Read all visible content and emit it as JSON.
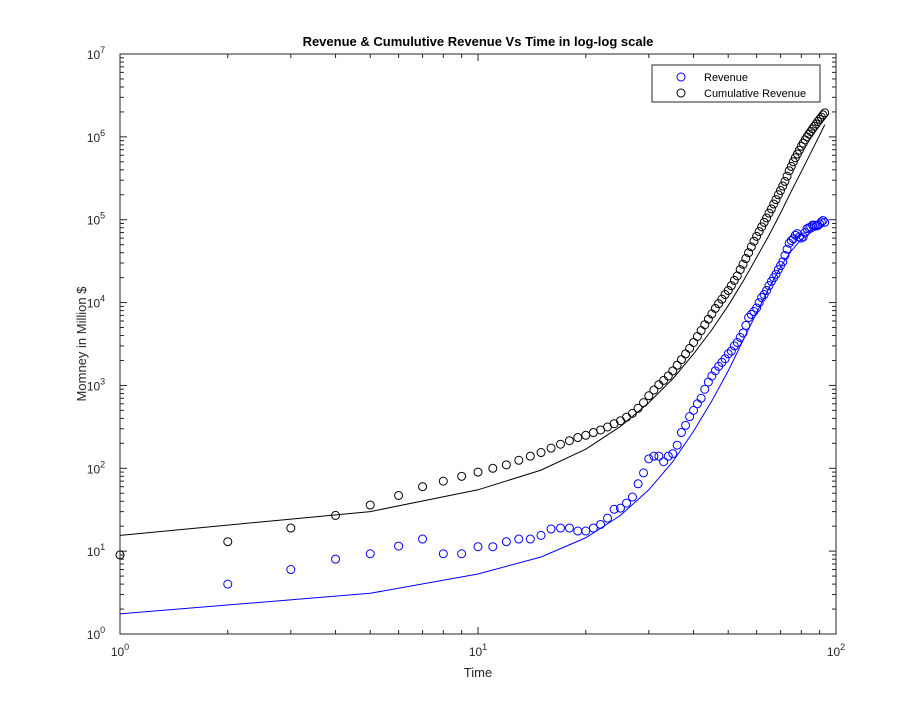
{
  "chart_data": {
    "type": "scatter",
    "title": "Revenue & Cumulutive Revenue Vs Time in log-log scale",
    "xlabel": "Time",
    "ylabel": "Momney in Million $",
    "x_scale": "log",
    "y_scale": "log",
    "xlim": [
      1,
      100
    ],
    "ylim": [
      1,
      10000000
    ],
    "x_ticks": [
      {
        "base": "10",
        "exp": "0",
        "value": 1
      },
      {
        "base": "10",
        "exp": "1",
        "value": 10
      },
      {
        "base": "10",
        "exp": "2",
        "value": 100
      }
    ],
    "y_ticks": [
      {
        "base": "10",
        "exp": "0",
        "value": 1
      },
      {
        "base": "10",
        "exp": "1",
        "value": 10
      },
      {
        "base": "10",
        "exp": "2",
        "value": 100
      },
      {
        "base": "10",
        "exp": "3",
        "value": 1000
      },
      {
        "base": "10",
        "exp": "4",
        "value": 10000
      },
      {
        "base": "10",
        "exp": "5",
        "value": 100000
      },
      {
        "base": "10",
        "exp": "6",
        "value": 1000000
      },
      {
        "base": "10",
        "exp": "7",
        "value": 10000000
      }
    ],
    "grid": false,
    "legend_position": "top-right",
    "series": [
      {
        "name": "Revenue",
        "marker": "circle-open",
        "color": "#0000ff",
        "x": [
          2,
          3,
          4,
          5,
          6,
          7,
          8,
          9,
          10,
          11,
          12,
          13,
          14,
          15,
          16,
          17,
          18,
          19,
          20,
          21,
          22,
          23,
          24,
          25,
          26,
          27,
          28,
          29,
          30,
          31,
          32,
          33,
          34,
          35,
          36,
          37,
          38,
          39,
          40,
          41,
          42,
          43,
          44,
          45,
          46,
          47,
          48,
          49,
          50,
          51,
          52,
          53,
          54,
          55,
          56,
          57,
          58,
          59,
          60,
          61,
          62,
          63,
          64,
          65,
          66,
          67,
          68,
          69,
          70,
          71,
          72,
          73,
          74,
          75,
          76,
          77,
          78,
          79,
          80,
          81,
          82,
          83,
          84,
          85,
          86,
          87,
          88,
          89,
          90,
          91,
          92,
          93
        ],
        "y": [
          4,
          6,
          8,
          9.3,
          11.5,
          14,
          9.3,
          9.3,
          11.3,
          11.3,
          13,
          14,
          14,
          15.5,
          18.5,
          19,
          19,
          17.5,
          17.5,
          19,
          21,
          25,
          32,
          33,
          38,
          45,
          65,
          88,
          130,
          140,
          140,
          120,
          140,
          150,
          190,
          270,
          330,
          420,
          500,
          600,
          700,
          900,
          1100,
          1300,
          1500,
          1700,
          1900,
          2100,
          2400,
          2600,
          3000,
          3300,
          3800,
          4300,
          5300,
          6600,
          7200,
          7800,
          8600,
          10000,
          11500,
          12500,
          14000,
          16000,
          18000,
          20000,
          22000,
          25000,
          28000,
          31000,
          37000,
          44000,
          52000,
          56000,
          59000,
          65000,
          68000,
          62000,
          60000,
          62000,
          70000,
          78000,
          80000,
          82000,
          86000,
          86000,
          84000,
          85000,
          89000,
          94000,
          98000,
          93000
        ]
      },
      {
        "name": "Cumulative Revenue",
        "marker": "circle-open",
        "color": "#000000",
        "x": [
          1,
          2,
          3,
          4,
          5,
          6,
          7,
          8,
          9,
          10,
          11,
          12,
          13,
          14,
          15,
          16,
          17,
          18,
          19,
          20,
          21,
          22,
          23,
          24,
          25,
          26,
          27,
          28,
          29,
          30,
          31,
          32,
          33,
          34,
          35,
          36,
          37,
          38,
          39,
          40,
          41,
          42,
          43,
          44,
          45,
          46,
          47,
          48,
          49,
          50,
          51,
          52,
          53,
          54,
          55,
          56,
          57,
          58,
          59,
          60,
          61,
          62,
          63,
          64,
          65,
          66,
          67,
          68,
          69,
          70,
          71,
          72,
          73,
          74,
          75,
          76,
          77,
          78,
          79,
          80,
          81,
          82,
          83,
          84,
          85,
          86,
          87,
          88,
          89,
          90,
          91,
          92,
          93
        ],
        "y": [
          9,
          13,
          19,
          27,
          36,
          47,
          60,
          70,
          80,
          90,
          100,
          110,
          125,
          140,
          155,
          175,
          195,
          215,
          235,
          250,
          270,
          290,
          315,
          345,
          375,
          415,
          460,
          530,
          620,
          750,
          880,
          1020,
          1150,
          1300,
          1500,
          1750,
          2050,
          2400,
          2800,
          3300,
          3900,
          4600,
          5400,
          6300,
          7300,
          8500,
          9700,
          11000,
          12500,
          14000,
          16000,
          18500,
          21000,
          25000,
          29000,
          34000,
          40000,
          47000,
          55000,
          63000,
          72000,
          82000,
          93000,
          105000,
          120000,
          135000,
          155000,
          175000,
          200000,
          225000,
          255000,
          290000,
          335000,
          390000,
          440000,
          500000,
          560000,
          620000,
          690000,
          770000,
          840000,
          920000,
          1000000,
          1080000,
          1160000,
          1250000,
          1340000,
          1430000,
          1530000,
          1630000,
          1730000,
          1840000,
          1950000
        ]
      }
    ],
    "fits": [
      {
        "color": "#0000ff",
        "x": [
          1,
          5,
          10,
          15,
          20,
          25,
          30,
          35,
          40,
          45,
          50,
          55,
          60,
          65,
          70,
          75,
          80,
          85,
          90,
          93
        ],
        "y": [
          1.75,
          3.1,
          5.3,
          8.5,
          14.5,
          27,
          55,
          120,
          280,
          650,
          1500,
          3500,
          7500,
          15000,
          27000,
          42000,
          58000,
          70000,
          80000,
          85000
        ]
      },
      {
        "color": "#000000",
        "x": [
          1,
          5,
          10,
          15,
          20,
          25,
          30,
          35,
          40,
          45,
          50,
          55,
          60,
          65,
          70,
          75,
          80,
          85,
          90,
          93
        ],
        "y": [
          15.5,
          30,
          55,
          95,
          170,
          320,
          620,
          1200,
          2400,
          4700,
          9200,
          18000,
          35000,
          65000,
          120000,
          220000,
          380000,
          640000,
          1050000,
          1400000
        ]
      }
    ]
  }
}
